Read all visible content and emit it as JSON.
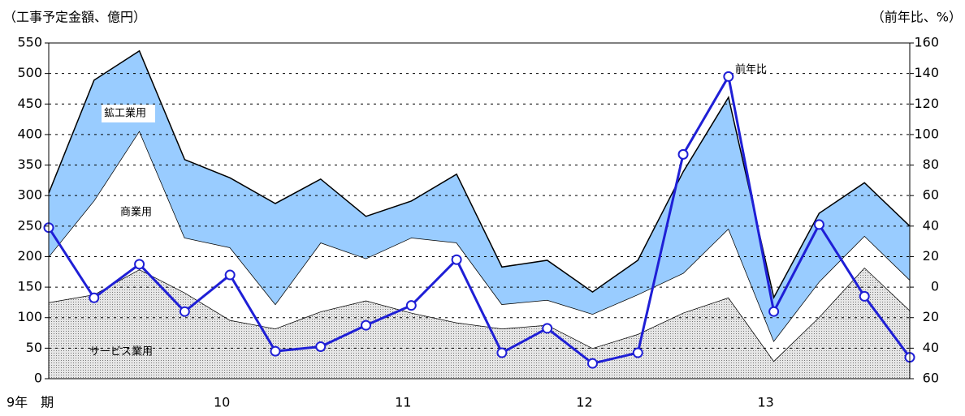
{
  "chart_data": {
    "type": "stacked-area-line",
    "y_label": "（工事予定金額、億円）",
    "y2_label": "（前年比、%）",
    "categories": [
      "9年　期",
      null,
      null,
      null,
      "10",
      null,
      null,
      null,
      "11",
      null,
      null,
      null,
      "12",
      null,
      null,
      null,
      "13",
      null,
      null,
      null
    ],
    "series": [
      {
        "name": "サービス業用",
        "color": "#c8c8c8",
        "values": [
          125,
          138,
          179,
          141,
          96,
          82,
          110,
          128,
          108,
          92,
          82,
          88,
          50,
          73,
          108,
          133,
          29,
          101,
          182,
          112
        ]
      },
      {
        "name": "商業用",
        "color": "#ffffff",
        "values": [
          75,
          154,
          227,
          90,
          119,
          40,
          113,
          69,
          123,
          131,
          40,
          41,
          56,
          65,
          65,
          113,
          33,
          58,
          52,
          50
        ]
      },
      {
        "name": "鉱工業用",
        "color": "#99ccff",
        "values": [
          104,
          197,
          131,
          128,
          114,
          165,
          104,
          69,
          60,
          112,
          61,
          65,
          36,
          56,
          166,
          215,
          71,
          112,
          87,
          88
        ]
      },
      {
        "name": "前年比",
        "color": "#1f1fd6",
        "axis": "y2",
        "values": [
          39,
          -7,
          15,
          -16,
          8,
          -42,
          -39,
          -25,
          -12,
          18,
          -43,
          -27,
          -50,
          -43,
          87,
          138,
          -16,
          41,
          -6,
          -46
        ]
      }
    ],
    "ylim": [
      0,
      550
    ],
    "yticks": [
      0,
      50,
      100,
      150,
      200,
      250,
      300,
      350,
      400,
      450,
      500,
      550
    ],
    "y2lim": [
      -60,
      160
    ],
    "y2ticks": [
      {
        "value": -60,
        "label": "60"
      },
      {
        "value": -40,
        "label": "40"
      },
      {
        "value": -20,
        "label": "20"
      },
      0,
      20,
      40,
      60,
      80,
      100,
      120,
      140,
      160
    ],
    "grid": true
  }
}
